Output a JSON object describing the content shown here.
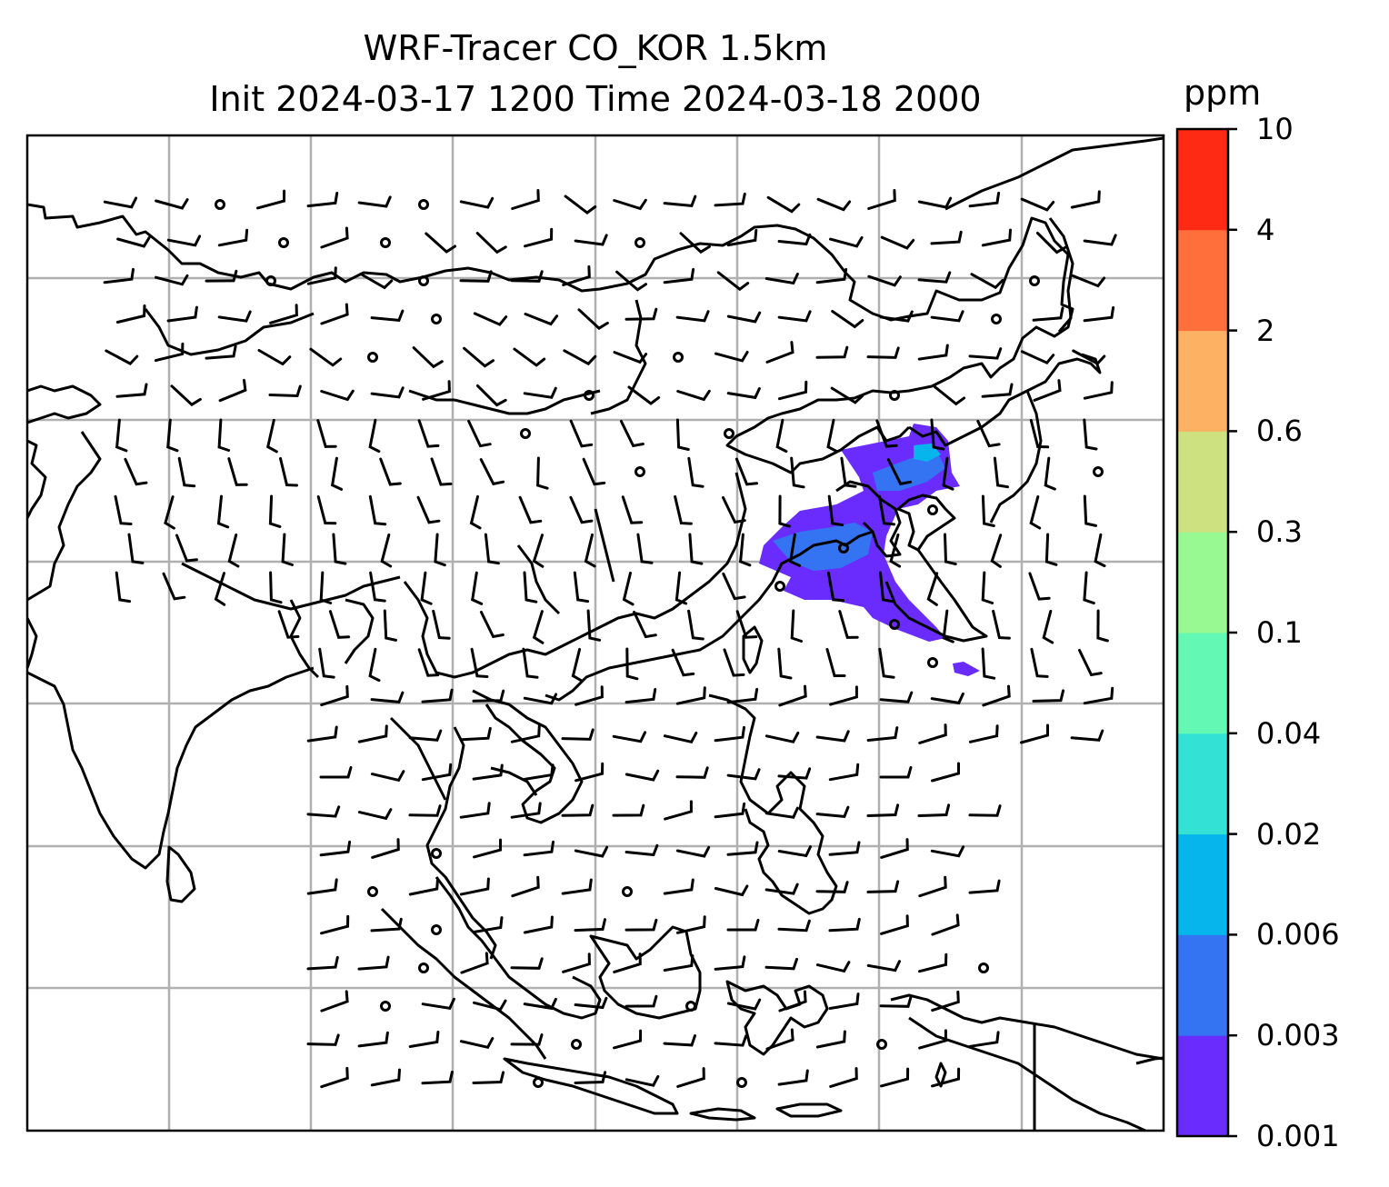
{
  "title": {
    "line1": "WRF-Tracer CO_KOR 1.5km",
    "line2": "Init 2024-03-17 1200 Time 2024-03-18 2000"
  },
  "colorbar": {
    "unit": "ppm",
    "levels": [
      "0.001",
      "0.003",
      "0.006",
      "0.02",
      "0.04",
      "0.1",
      "0.3",
      "0.6",
      "2",
      "4",
      "10"
    ],
    "colors": [
      "#6a2cfc",
      "#3473f1",
      "#06b5eb",
      "#33e1d5",
      "#63f9b4",
      "#98f892",
      "#cde180",
      "#fdb162",
      "#ff6f3c",
      "#ff2a14"
    ]
  },
  "map": {
    "gridlines": "on",
    "coastlines": "on",
    "overlay": "wind barbs",
    "frame": "black"
  }
}
